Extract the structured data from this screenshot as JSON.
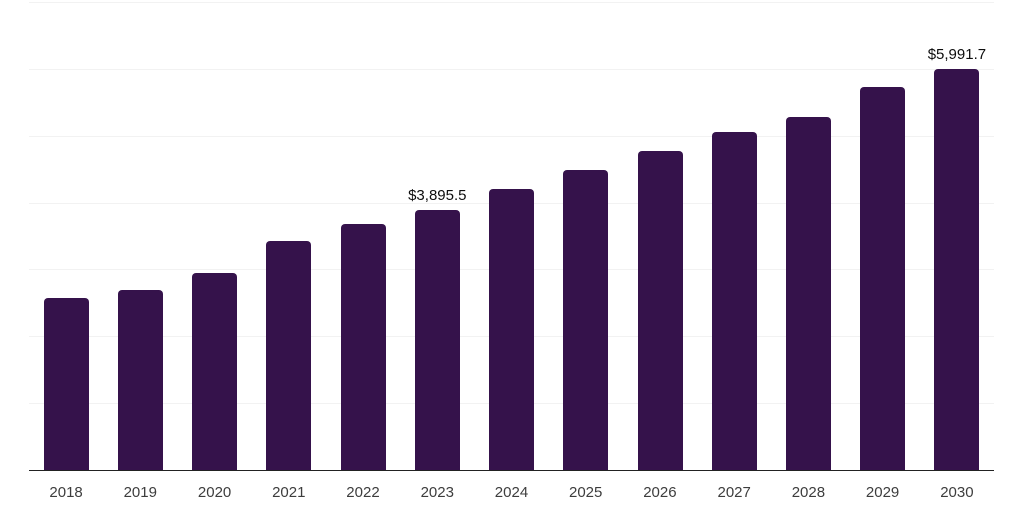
{
  "chart_data": {
    "type": "bar",
    "title": "",
    "xlabel": "",
    "ylabel": "",
    "categories": [
      "2018",
      "2019",
      "2020",
      "2021",
      "2022",
      "2023",
      "2024",
      "2025",
      "2026",
      "2027",
      "2028",
      "2029",
      "2030"
    ],
    "values": [
      2580,
      2690,
      2950,
      3425,
      3680,
      3895.5,
      4200,
      4490,
      4770,
      5055,
      5280,
      5730,
      5991.7
    ],
    "data_labels": [
      null,
      null,
      null,
      null,
      null,
      "$3,895.5",
      null,
      null,
      null,
      null,
      null,
      null,
      "$5,991.7"
    ],
    "ylim": [
      0,
      7000
    ],
    "gridline_step": 1000,
    "grid": "horizontal",
    "y_tick_labels_visible": false,
    "legend": "none",
    "bar_color": "#35124b",
    "gridline_color": "#f2f2f2",
    "axis_color": "#222222",
    "tick_label_color": "#3d3d3d",
    "data_label_color": "#0d0d0d",
    "background": "#ffffff"
  }
}
